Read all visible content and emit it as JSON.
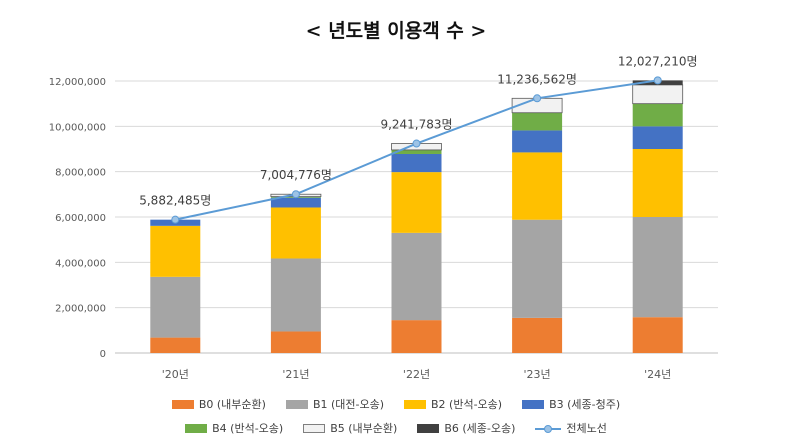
{
  "chart_data": {
    "type": "bar",
    "stacked": true,
    "title": "< 년도별 이용객 수 >",
    "categories": [
      "'20년",
      "'21년",
      "'22년",
      "'23년",
      "'24년"
    ],
    "ylim": [
      0,
      12000000
    ],
    "yticks": [
      "0",
      "2,000,000",
      "4,000,000",
      "6,000,000",
      "8,000,000",
      "10,000,000",
      "12,000,000"
    ],
    "grid": true,
    "legend_position": "bottom",
    "series": [
      {
        "name": "B0 (내부순환)",
        "color": "#ED7D31",
        "values": [
          680000,
          950000,
          1450000,
          1550000,
          1580000
        ]
      },
      {
        "name": "B1 (대전-오송)",
        "color": "#A5A5A5",
        "values": [
          2680000,
          3220000,
          3850000,
          4330000,
          4420000
        ]
      },
      {
        "name": "B2 (반석-오송)",
        "color": "#FFC000",
        "values": [
          2250000,
          2250000,
          2680000,
          2970000,
          3000000
        ]
      },
      {
        "name": "B3 (세종-청주)",
        "color": "#4472C4",
        "values": [
          272485,
          430000,
          800000,
          970000,
          1000000
        ]
      },
      {
        "name": "B4 (반석-오송)",
        "color": "#70AD47",
        "values": [
          0,
          50000,
          180000,
          780000,
          1000000
        ]
      },
      {
        "name": "B5 (내부순환)",
        "color": "#F2F2F2",
        "values": [
          0,
          104776,
          281783,
          636562,
          827210
        ]
      },
      {
        "name": "B6 (세종-오송)",
        "color": "#404040",
        "values": [
          0,
          0,
          0,
          0,
          200000
        ]
      }
    ],
    "total_line": {
      "name": "전체노선",
      "color": "#5B9BD5",
      "values": [
        5882485,
        7004776,
        9241783,
        11236562,
        12027210
      ],
      "labels": [
        "5,882,485명",
        "7,004,776명",
        "9,241,783명",
        "11,236,562명",
        "12,027,210명"
      ]
    }
  }
}
